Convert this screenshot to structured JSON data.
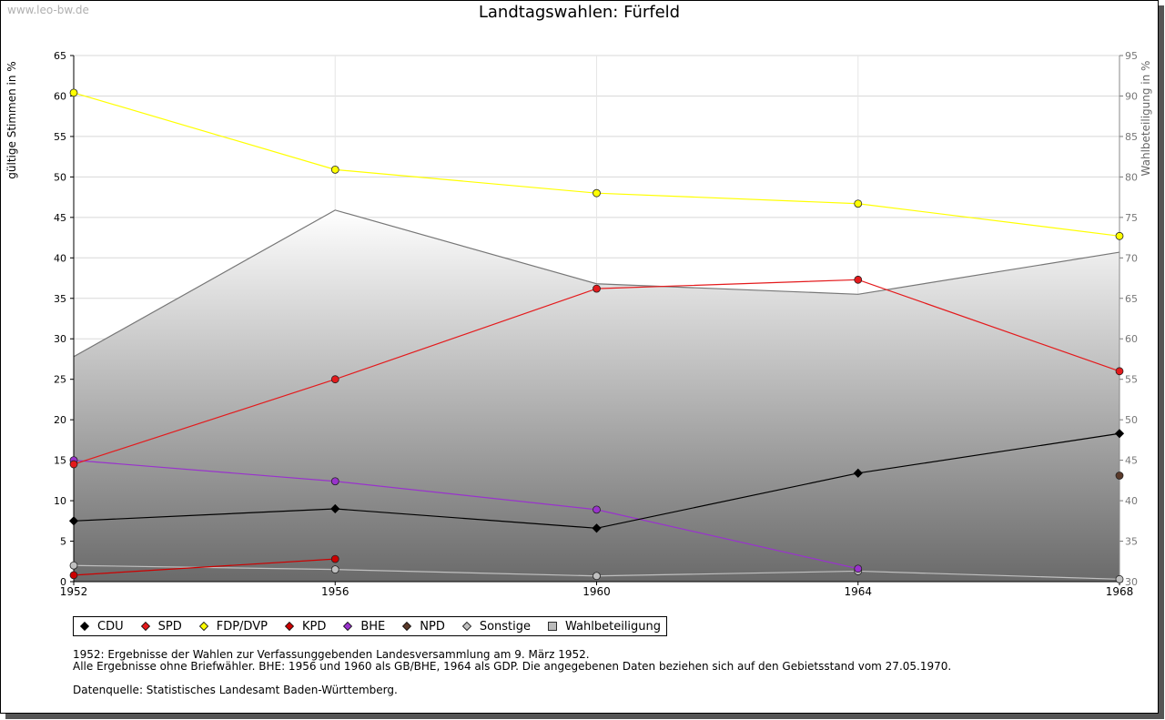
{
  "watermark": "www.leo-bw.de",
  "chart_data": {
    "type": "line",
    "title": "Landtagswahlen: Fürfeld",
    "ylabel": "gültige Stimmen in %",
    "y2label": "Wahlbeteiligung in %",
    "ylim": [
      0,
      65
    ],
    "y2lim": [
      30,
      95
    ],
    "yticks": [
      "0",
      "5",
      "10",
      "15",
      "20",
      "25",
      "30",
      "35",
      "40",
      "45",
      "50",
      "55",
      "60",
      "65"
    ],
    "y2ticks": [
      "30",
      "35",
      "40",
      "45",
      "50",
      "55",
      "60",
      "65",
      "70",
      "75",
      "80",
      "85",
      "90",
      "95"
    ],
    "x": [
      1952,
      1956,
      1960,
      1964,
      1968
    ],
    "xticks": [
      "1952",
      "1956",
      "1960",
      "1964",
      "1968"
    ],
    "grid": true,
    "legend_position": "bottom",
    "series": [
      {
        "name": "CDU",
        "color": "#000000",
        "marker": "diamond",
        "values": [
          7.5,
          9.0,
          6.6,
          13.4,
          18.3
        ]
      },
      {
        "name": "SPD",
        "color": "#e41a1c",
        "marker": "circle",
        "values": [
          14.5,
          25.0,
          36.2,
          37.3,
          26.0
        ]
      },
      {
        "name": "FDP/DVP",
        "color": "#ffff00",
        "marker": "circle",
        "values": [
          60.4,
          50.9,
          48.0,
          46.7,
          42.7
        ]
      },
      {
        "name": "KPD",
        "color": "#cc0000",
        "marker": "circle",
        "values": [
          0.8,
          2.8,
          null,
          null,
          null
        ]
      },
      {
        "name": "BHE",
        "color": "#9933cc",
        "marker": "circle",
        "values": [
          15.0,
          12.4,
          8.9,
          1.6,
          null
        ]
      },
      {
        "name": "NPD",
        "color": "#5a3a2a",
        "marker": "circle",
        "values": [
          null,
          null,
          null,
          null,
          13.1
        ]
      },
      {
        "name": "Sonstige",
        "color": "#c0c0c0",
        "marker": "circle",
        "values": [
          2.0,
          1.5,
          0.7,
          1.3,
          0.3
        ]
      }
    ],
    "turnout": {
      "name": "Wahlbeteiligung",
      "axis": "right",
      "values": [
        57.8,
        75.9,
        66.8,
        65.5,
        70.7
      ]
    }
  },
  "notes": [
    "1952: Ergebnisse der Wahlen zur Verfassunggebenden Landesversammlung am 9. März 1952.",
    "Alle Ergebnisse ohne Briefwähler. BHE: 1956 und 1960 als GB/BHE, 1964 als GDP. Die angegebenen Daten beziehen sich auf den Gebietsstand vom 27.05.1970.",
    "Datenquelle: Statistisches Landesamt Baden-Württemberg."
  ]
}
